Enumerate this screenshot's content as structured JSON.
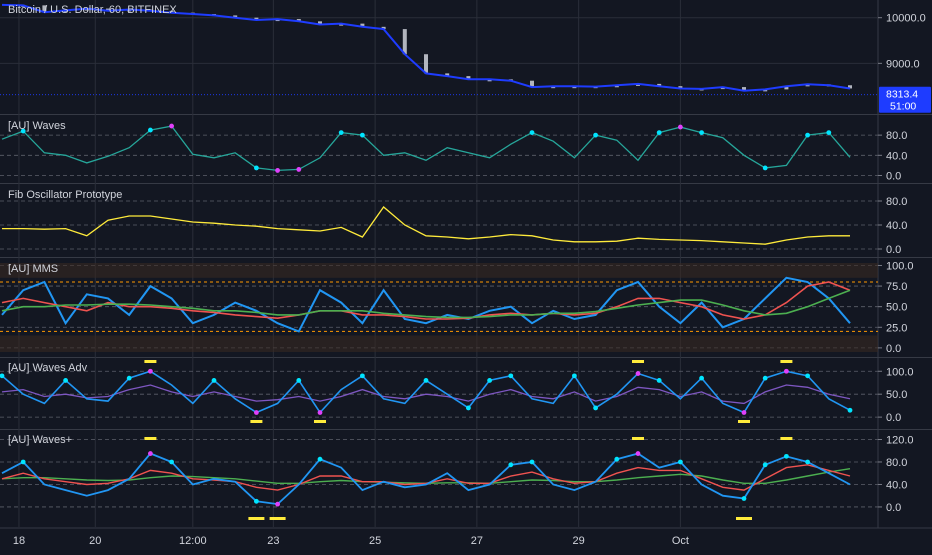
{
  "header": {
    "symbol": "Bitcoin / U.S. Dollar",
    "interval": "60",
    "exchange": "BITFINEX"
  },
  "price_labels": {
    "last_price": "8313.4",
    "countdown": "51:00"
  },
  "colors": {
    "background": "#131722",
    "grid": "#2a2e39",
    "axis_text": "#d1d4dc",
    "price_line": "#1e3cff",
    "candle": "#b2b5be",
    "waves_line": "#26a69a",
    "cyan_dot": "#00e5ff",
    "magenta_dot": "#e040fb",
    "fib_line": "#ffeb3b",
    "mms_blue": "#2196f3",
    "mms_red": "#ef5350",
    "mms_green": "#4caf50",
    "mms_band_orange": "#ff9800",
    "purple_line": "#7e57c2",
    "yellow_marker": "#ffeb3b",
    "orange_marker": "#ff5722"
  },
  "x_axis": {
    "labels": [
      "18",
      "20",
      "12:00",
      "23",
      "25",
      "27",
      "29",
      "Oct"
    ]
  },
  "panels": [
    {
      "key": "price",
      "title": ""
    },
    {
      "key": "waves",
      "title": "[AU] Waves"
    },
    {
      "key": "fib",
      "title": "Fib Oscillator Prototype"
    },
    {
      "key": "mms",
      "title": "[AU] MMS"
    },
    {
      "key": "wadv",
      "title": "[AU] Waves Adv"
    },
    {
      "key": "wplus",
      "title": "[AU] Waves+"
    }
  ],
  "chart_data": [
    {
      "type": "line",
      "panel": "price",
      "ylim": [
        8000,
        10300
      ],
      "y_ticks": [
        10000,
        9000
      ],
      "y_tick_labels": [
        "10000.0",
        "9000.0"
      ],
      "x": [
        0,
        5,
        10,
        15,
        20,
        25,
        30,
        35,
        40,
        45,
        50,
        55,
        60,
        65,
        70,
        75,
        80,
        85,
        90,
        95,
        100,
        105,
        110,
        115,
        120,
        125,
        130,
        135,
        140,
        145,
        150,
        155,
        160,
        165,
        170,
        175,
        180,
        185,
        190,
        195,
        200
      ],
      "values": [
        10280,
        10270,
        10120,
        10160,
        10200,
        10150,
        10180,
        10150,
        10110,
        10080,
        10050,
        10000,
        9950,
        9970,
        9920,
        9850,
        9870,
        9800,
        9750,
        9200,
        8780,
        8720,
        8650,
        8650,
        8620,
        8480,
        8500,
        8500,
        8490,
        8520,
        8550,
        8500,
        8450,
        8440,
        8480,
        8400,
        8430,
        8500,
        8540,
        8520,
        8450
      ],
      "last_value": 8313.4
    },
    {
      "type": "line",
      "panel": "waves",
      "ylim": [
        -5,
        110
      ],
      "y_ticks": [
        80,
        40,
        0
      ],
      "y_tick_labels": [
        "80.0",
        "40.0",
        "0.0"
      ],
      "x": [
        0,
        5,
        10,
        15,
        20,
        25,
        30,
        35,
        40,
        45,
        50,
        55,
        60,
        65,
        70,
        75,
        80,
        85,
        90,
        95,
        100,
        105,
        110,
        115,
        120,
        125,
        130,
        135,
        140,
        145,
        150,
        155,
        160,
        165,
        170,
        175,
        180,
        185,
        190,
        195,
        200
      ],
      "values": [
        72,
        88,
        45,
        40,
        25,
        38,
        55,
        90,
        98,
        42,
        35,
        45,
        15,
        10,
        12,
        35,
        85,
        80,
        40,
        45,
        30,
        55,
        45,
        35,
        62,
        85,
        68,
        35,
        80,
        70,
        30,
        85,
        96,
        85,
        75,
        40,
        15,
        20,
        80,
        85,
        36
      ]
    },
    {
      "type": "line",
      "panel": "fib",
      "ylim": [
        -5,
        100
      ],
      "y_ticks": [
        80,
        40,
        0
      ],
      "y_tick_labels": [
        "80.0",
        "40.0",
        "0.0"
      ],
      "x": [
        0,
        5,
        10,
        15,
        20,
        25,
        30,
        35,
        40,
        45,
        50,
        55,
        60,
        65,
        70,
        75,
        80,
        85,
        90,
        95,
        100,
        105,
        110,
        115,
        120,
        125,
        130,
        135,
        140,
        145,
        150,
        155,
        160,
        165,
        170,
        175,
        180,
        185,
        190,
        195,
        200
      ],
      "values": [
        34,
        34,
        33,
        34,
        22,
        48,
        55,
        55,
        50,
        45,
        43,
        40,
        38,
        34,
        32,
        30,
        36,
        20,
        70,
        40,
        22,
        20,
        17,
        20,
        24,
        22,
        15,
        12,
        12,
        13,
        18,
        16,
        15,
        14,
        12,
        10,
        8,
        15,
        20,
        22,
        22
      ]
    },
    {
      "type": "line",
      "panel": "mms",
      "ylim": [
        -5,
        103
      ],
      "y_ticks": [
        100,
        75,
        50,
        25,
        0
      ],
      "y_tick_labels": [
        "100.0",
        "75.0",
        "50.0",
        "25.0",
        "0.0"
      ],
      "x": [
        0,
        5,
        10,
        15,
        20,
        25,
        30,
        35,
        40,
        45,
        50,
        55,
        60,
        65,
        70,
        75,
        80,
        85,
        90,
        95,
        100,
        105,
        110,
        115,
        120,
        125,
        130,
        135,
        140,
        145,
        150,
        155,
        160,
        165,
        170,
        175,
        180,
        185,
        190,
        195,
        200
      ],
      "series": [
        {
          "name": "",
          "values": [
            40,
            70,
            80,
            30,
            65,
            60,
            40,
            75,
            60,
            30,
            40,
            55,
            45,
            30,
            20,
            70,
            55,
            30,
            70,
            35,
            30,
            40,
            35,
            45,
            50,
            30,
            45,
            35,
            40,
            70,
            80,
            50,
            30,
            55,
            25,
            35,
            60,
            85,
            80,
            60,
            30
          ]
        },
        {
          "name": "",
          "values": [
            55,
            60,
            55,
            50,
            45,
            55,
            50,
            50,
            48,
            45,
            43,
            40,
            38,
            36,
            40,
            45,
            45,
            40,
            40,
            38,
            35,
            35,
            36,
            40,
            42,
            40,
            42,
            40,
            42,
            50,
            60,
            60,
            55,
            50,
            40,
            35,
            40,
            55,
            75,
            80,
            70
          ]
        },
        {
          "name": "",
          "values": [
            45,
            50,
            50,
            52,
            52,
            53,
            53,
            52,
            50,
            48,
            45,
            45,
            43,
            40,
            40,
            45,
            45,
            45,
            42,
            40,
            38,
            37,
            37,
            38,
            40,
            40,
            42,
            42,
            44,
            48,
            52,
            55,
            58,
            58,
            52,
            45,
            40,
            42,
            50,
            60,
            70
          ]
        }
      ]
    },
    {
      "type": "line",
      "panel": "wadv",
      "ylim": [
        -15,
        118
      ],
      "y_ticks": [
        100,
        50,
        0
      ],
      "y_tick_labels": [
        "100.0",
        "50.0",
        "0.0"
      ],
      "x": [
        0,
        5,
        10,
        15,
        20,
        25,
        30,
        35,
        40,
        45,
        50,
        55,
        60,
        65,
        70,
        75,
        80,
        85,
        90,
        95,
        100,
        105,
        110,
        115,
        120,
        125,
        130,
        135,
        140,
        145,
        150,
        155,
        160,
        165,
        170,
        175,
        180,
        185,
        190,
        195,
        200
      ],
      "series": [
        {
          "name": "",
          "values": [
            90,
            50,
            30,
            80,
            40,
            35,
            85,
            100,
            70,
            30,
            80,
            40,
            10,
            30,
            80,
            10,
            60,
            90,
            40,
            30,
            80,
            50,
            20,
            80,
            90,
            40,
            30,
            90,
            20,
            50,
            95,
            80,
            40,
            85,
            30,
            10,
            85,
            100,
            90,
            40,
            15
          ]
        },
        {
          "name": "",
          "values": [
            55,
            60,
            45,
            50,
            42,
            45,
            60,
            70,
            55,
            45,
            55,
            45,
            35,
            38,
            45,
            35,
            45,
            60,
            45,
            40,
            50,
            45,
            35,
            50,
            60,
            45,
            40,
            55,
            35,
            45,
            65,
            60,
            45,
            55,
            35,
            30,
            55,
            70,
            65,
            50,
            40
          ]
        }
      ]
    },
    {
      "type": "line",
      "panel": "wplus",
      "ylim": [
        -25,
        128
      ],
      "y_ticks": [
        120,
        80,
        40,
        0
      ],
      "y_tick_labels": [
        "120.0",
        "80.0",
        "40.0",
        "0.0"
      ],
      "x": [
        0,
        5,
        10,
        15,
        20,
        25,
        30,
        35,
        40,
        45,
        50,
        55,
        60,
        65,
        70,
        75,
        80,
        85,
        90,
        95,
        100,
        105,
        110,
        115,
        120,
        125,
        130,
        135,
        140,
        145,
        150,
        155,
        160,
        165,
        170,
        175,
        180,
        185,
        190,
        195,
        200
      ],
      "series": [
        {
          "name": "",
          "values": [
            60,
            80,
            40,
            30,
            20,
            30,
            50,
            95,
            80,
            40,
            50,
            45,
            10,
            5,
            40,
            85,
            70,
            30,
            45,
            35,
            40,
            60,
            30,
            40,
            75,
            80,
            40,
            30,
            45,
            85,
            95,
            70,
            80,
            40,
            20,
            15,
            75,
            90,
            80,
            60,
            40
          ]
        },
        {
          "name": "",
          "values": [
            50,
            60,
            50,
            45,
            40,
            42,
            50,
            65,
            60,
            50,
            48,
            45,
            35,
            30,
            40,
            55,
            55,
            45,
            45,
            40,
            42,
            50,
            42,
            42,
            55,
            62,
            50,
            42,
            45,
            60,
            70,
            65,
            65,
            50,
            35,
            30,
            50,
            70,
            75,
            65,
            55
          ]
        },
        {
          "name": "",
          "values": [
            50,
            52,
            52,
            50,
            48,
            47,
            48,
            52,
            55,
            54,
            52,
            50,
            46,
            42,
            42,
            45,
            47,
            45,
            44,
            43,
            42,
            43,
            43,
            42,
            45,
            48,
            47,
            45,
            45,
            48,
            52,
            55,
            58,
            55,
            48,
            42,
            42,
            48,
            55,
            62,
            68
          ]
        }
      ]
    }
  ]
}
